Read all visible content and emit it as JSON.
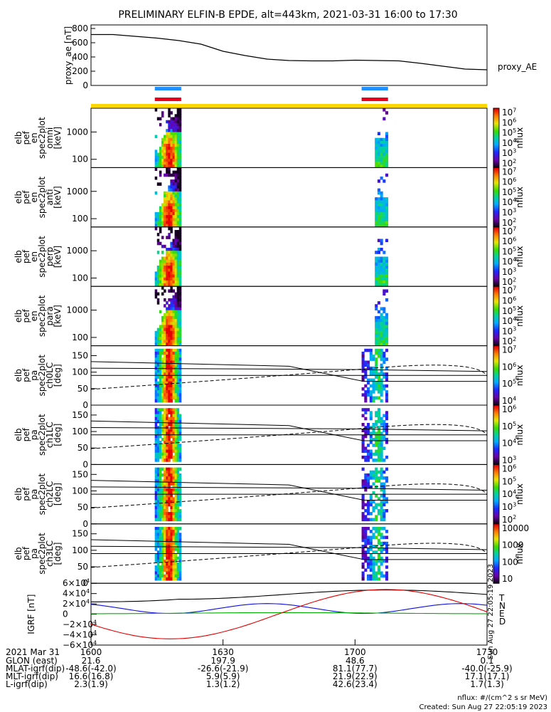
{
  "title": "PRELIMINARY ELFIN-B EPDE, alt=443km, 2021-03-31 16:00 to 17:30",
  "colors": {
    "bar_blue": "#1e8fff",
    "bar_red": "#e8001c",
    "bar_yellow": "#ffd700",
    "igrf_T": "#000000",
    "igrf_N": "#1010e0",
    "igrf_E": "#00b000",
    "igrf_D": "#e00000"
  },
  "chart_data": [
    {
      "type": "line",
      "panel": "proxy_ae",
      "ylabel": "proxy_ae [nT]",
      "series_label": "proxy_AE",
      "ylim": [
        0,
        850
      ],
      "yticks": [
        0,
        200,
        400,
        600,
        800
      ],
      "x_minutes": [
        0,
        5,
        10,
        15,
        20,
        25,
        30,
        35,
        40,
        45,
        50,
        55,
        60,
        65,
        70,
        75,
        80,
        85,
        90
      ],
      "values": [
        715,
        715,
        690,
        665,
        630,
        580,
        480,
        420,
        370,
        350,
        345,
        345,
        355,
        350,
        345,
        310,
        270,
        230,
        220
      ]
    },
    {
      "type": "heatmap",
      "panel": "omni",
      "ylabel": [
        "elb",
        "pef",
        "en",
        "spec2plot",
        "omni",
        "[keV]"
      ],
      "yscale": "log",
      "yticks": [
        "100",
        "1000"
      ],
      "colorbar_label": "nflux",
      "colorbar_ticks": [
        "10^2",
        "10^3",
        "10^4",
        "10^5",
        "10^6",
        "10^7"
      ]
    },
    {
      "type": "heatmap",
      "panel": "anti",
      "ylabel": [
        "elb",
        "pef",
        "en",
        "spec2plot",
        "anti",
        "[keV]"
      ],
      "yscale": "log",
      "yticks": [
        "100",
        "1000"
      ],
      "colorbar_label": "nflux",
      "colorbar_ticks": [
        "10^2",
        "10^3",
        "10^4",
        "10^5",
        "10^6",
        "10^7"
      ]
    },
    {
      "type": "heatmap",
      "panel": "perp",
      "ylabel": [
        "elb",
        "pef",
        "en",
        "spec2plot",
        "perp",
        "[keV]"
      ],
      "yscale": "log",
      "yticks": [
        "100",
        "1000"
      ],
      "colorbar_label": "nflux",
      "colorbar_ticks": [
        "10^2",
        "10^3",
        "10^4",
        "10^5",
        "10^6",
        "10^7"
      ]
    },
    {
      "type": "heatmap",
      "panel": "para",
      "ylabel": [
        "elb",
        "pef",
        "en",
        "spec2plot",
        "para",
        "[keV]"
      ],
      "yscale": "log",
      "yticks": [
        "100",
        "1000"
      ],
      "colorbar_label": "nflux",
      "colorbar_ticks": [
        "10^2",
        "10^3",
        "10^4",
        "10^5",
        "10^6",
        "10^7"
      ]
    },
    {
      "type": "heatmap",
      "panel": "ch0LC",
      "ylabel": [
        "elb",
        "pef",
        "pa",
        "spec2plot",
        "ch0LC",
        "[deg]"
      ],
      "ylim": [
        0,
        180
      ],
      "yticks": [
        "0",
        "50",
        "100",
        "150"
      ],
      "colorbar_label": "nflux",
      "colorbar_ticks": [
        "10^4",
        "10^5",
        "10^6",
        "10^7"
      ]
    },
    {
      "type": "heatmap",
      "panel": "ch1LC",
      "ylabel": [
        "elb",
        "pef",
        "pa",
        "spec2plot",
        "ch1LC",
        "[deg]"
      ],
      "ylim": [
        0,
        180
      ],
      "yticks": [
        "0",
        "50",
        "100",
        "150"
      ],
      "colorbar_label": "nflux",
      "colorbar_ticks": [
        "10^3",
        "10^4",
        "10^5",
        "10^6"
      ]
    },
    {
      "type": "heatmap",
      "panel": "ch2LC",
      "ylabel": [
        "elb",
        "pef",
        "pa",
        "spec2plot",
        "ch2LC",
        "[deg]"
      ],
      "ylim": [
        0,
        180
      ],
      "yticks": [
        "0",
        "50",
        "100",
        "150"
      ],
      "colorbar_label": "nflux",
      "colorbar_ticks": [
        "10^2",
        "10^3",
        "10^4",
        "10^5",
        "10^6"
      ]
    },
    {
      "type": "heatmap",
      "panel": "ch3LC",
      "ylabel": [
        "elb",
        "pef",
        "pa",
        "spec2plot",
        "ch3LC",
        "[deg]"
      ],
      "ylim": [
        0,
        180
      ],
      "yticks": [
        "0",
        "50",
        "100",
        "150"
      ],
      "colorbar_label": "nflux",
      "colorbar_ticks": [
        "10",
        "100",
        "1000",
        "10000"
      ]
    },
    {
      "type": "line",
      "panel": "IGRF",
      "ylabel": "IGRF [nT]",
      "ylim": [
        -60000,
        60000
      ],
      "yticks": [
        "−6×10^4",
        "−4×10^4",
        "−2×10^4",
        "0",
        "2×10^4",
        "4×10^4",
        "6×10^4"
      ],
      "legend": [
        "T",
        "N",
        "E",
        "D"
      ],
      "side_stamp": "Sun Aug 27 22:05:19 2023"
    }
  ],
  "time_axis": {
    "ticks": [
      "1600",
      "1630",
      "1700",
      "1730"
    ]
  },
  "ephemeris": {
    "header": "2021 Mar 31",
    "rows": [
      {
        "label": "GLON (east)",
        "values": [
          "21.6",
          "197.9",
          "48.6",
          "0.1"
        ]
      },
      {
        "label": "MLAT-igrf(dip)",
        "values": [
          "-48.6(-42.0)",
          "-26.6(-21.9)",
          "81.1(77.7)",
          "-40.0(-25.9)"
        ]
      },
      {
        "label": "MLT-igrf(dip)",
        "values": [
          "16.6(16.8)",
          "5.9(5.9)",
          "21.9(22.9)",
          "17.1(17.1)"
        ]
      },
      {
        "label": "L-igrf(dip)",
        "values": [
          "2.3(1.9)",
          "1.3(1.2)",
          "42.6(23.4)",
          "1.7(1.3)"
        ]
      }
    ]
  },
  "footer": {
    "units": "nflux: #/(cm^2 s sr MeV)",
    "created": "Created: Sun Aug 27 22:05:19 2023"
  }
}
